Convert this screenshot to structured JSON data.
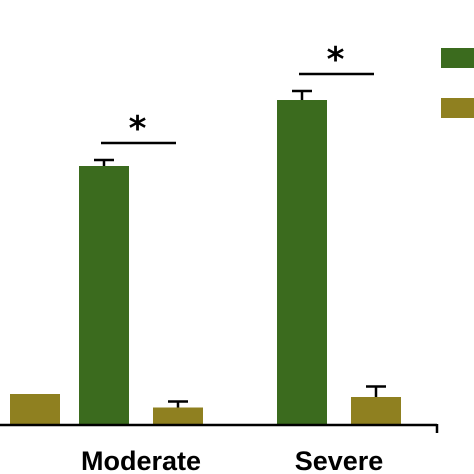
{
  "chart_data": {
    "type": "bar",
    "categories": [
      "",
      "Moderate",
      "Severe"
    ],
    "series": [
      {
        "color": "#3b6b1e",
        "values": [
          null,
          86,
          108
        ],
        "errors": [
          null,
          2,
          3
        ]
      },
      {
        "color": "#8f8020",
        "values": [
          10,
          5.5,
          9
        ],
        "errors": [
          null,
          2,
          3.5
        ]
      }
    ],
    "ylim": [
      0,
      125
    ],
    "significance": [
      {
        "category": "Moderate",
        "label": "*"
      },
      {
        "category": "Severe",
        "label": "*"
      }
    ],
    "legend": {
      "position": "top-right",
      "show_text": false
    },
    "grid": false
  }
}
